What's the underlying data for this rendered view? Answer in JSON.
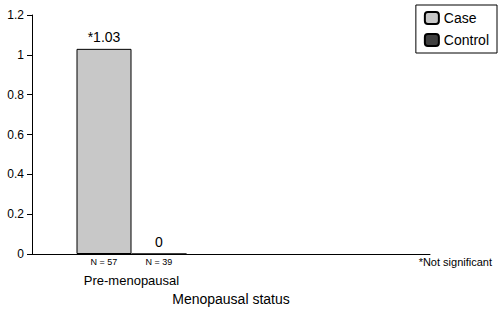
{
  "chart_data": {
    "type": "bar",
    "x_label": "Menopausal status",
    "categories": [
      "Pre-menopausal",
      null
    ],
    "series": [
      {
        "name": "Case",
        "color": "#c8c8c8",
        "values": [
          1.03,
          null
        ],
        "value_labels": [
          "*1.03",
          null
        ],
        "n_labels": [
          "N = 57",
          null
        ]
      },
      {
        "name": "Control",
        "color": "#404040",
        "values": [
          0,
          null
        ],
        "n_labels": [
          "N = 39",
          null
        ]
      }
    ],
    "ylim": [
      0,
      1.2
    ],
    "yticks": [
      0,
      0.2,
      0.4,
      0.6,
      0.8,
      1,
      1.2
    ],
    "data_labels": true,
    "legend": "top-right",
    "grid": false,
    "note": "*Not significant"
  }
}
